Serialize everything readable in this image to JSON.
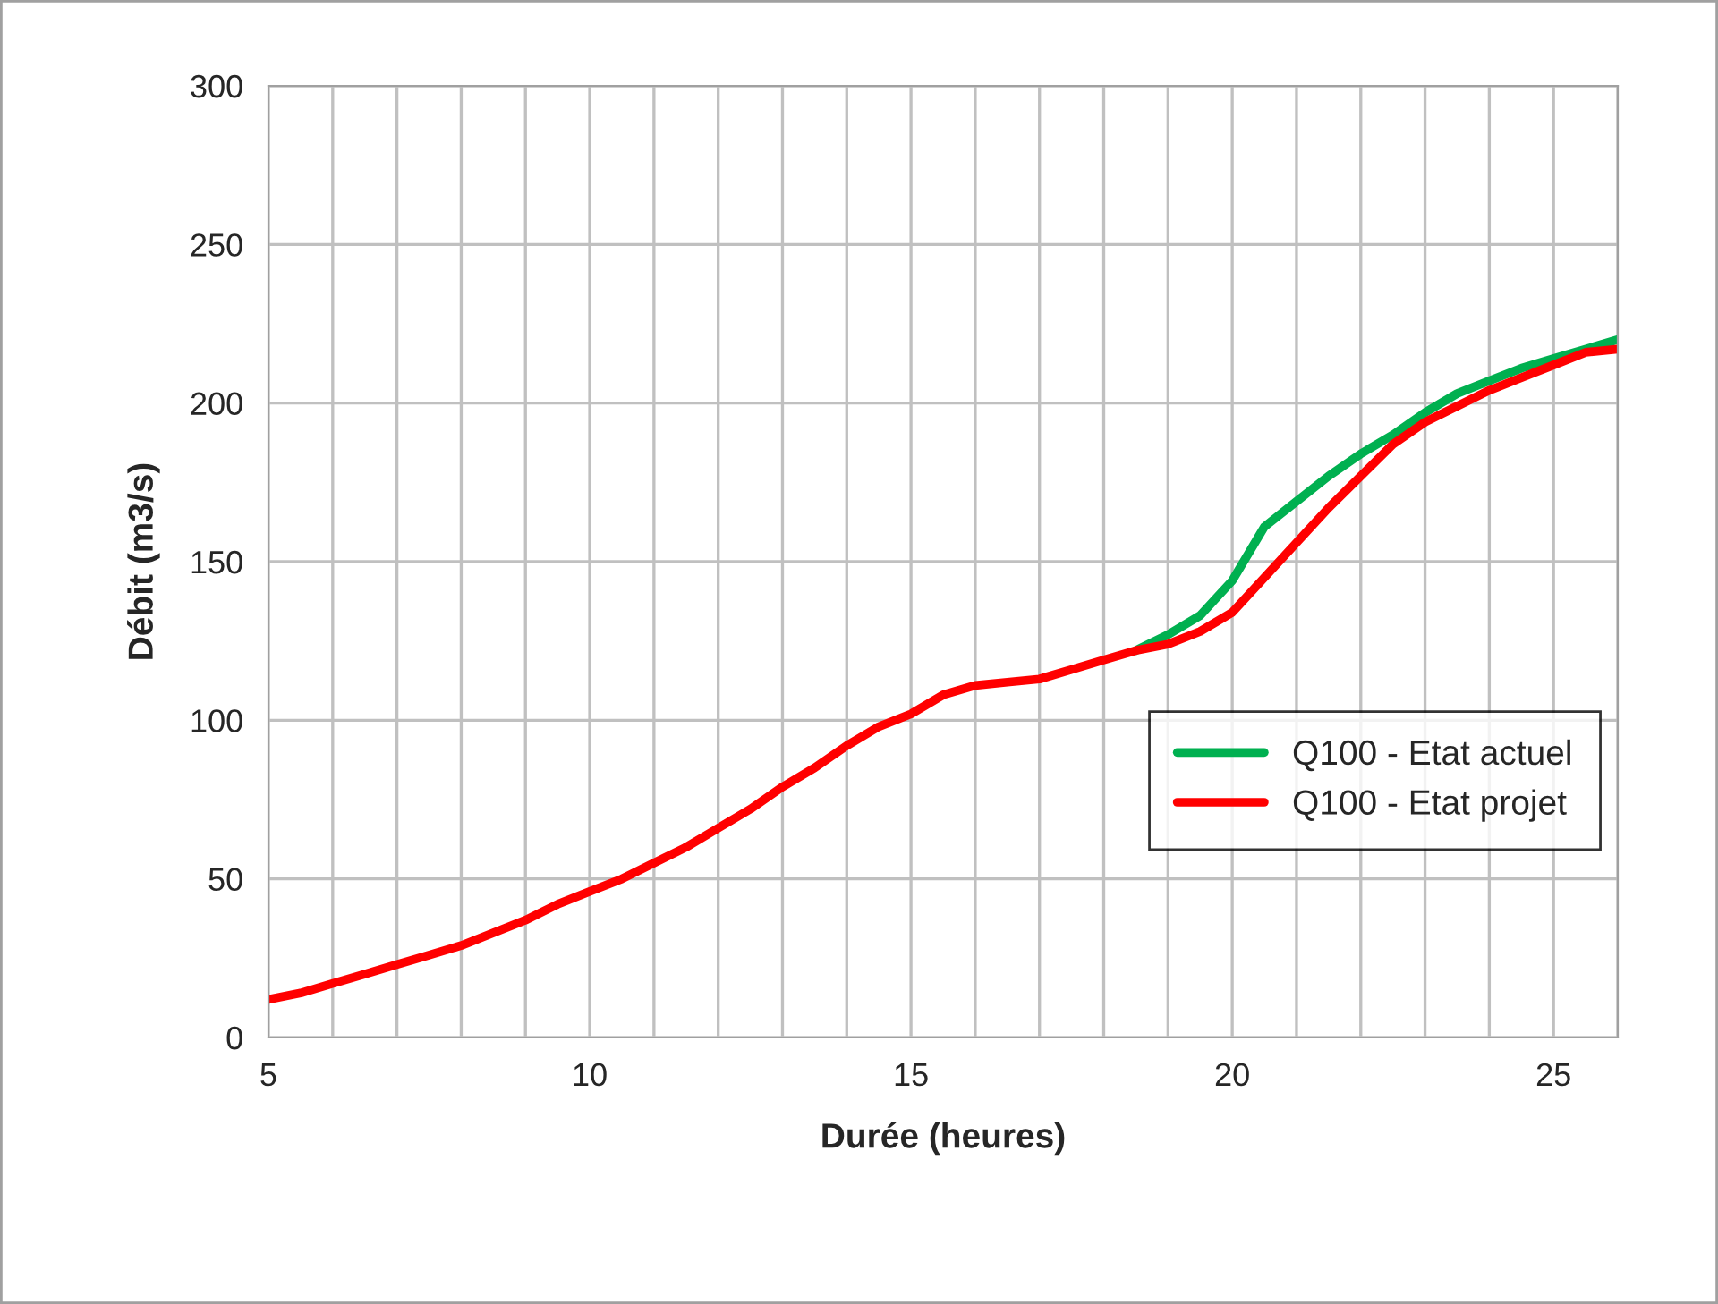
{
  "chart_data": {
    "type": "line",
    "xlabel": "Durée (heures)",
    "ylabel": "Débit (m3/s)",
    "x": [
      5,
      5.5,
      6,
      6.5,
      7,
      7.5,
      8,
      8.5,
      9,
      9.5,
      10,
      10.5,
      11,
      11.5,
      12,
      12.5,
      13,
      13.5,
      14,
      14.5,
      15,
      15.5,
      16,
      16.5,
      17,
      17.5,
      18,
      18.5,
      19,
      19.5,
      20,
      20.5,
      21,
      21.5,
      22,
      22.5,
      23,
      23.5,
      24,
      24.5,
      25,
      25.5,
      26
    ],
    "series": [
      {
        "name": "Q100 - Etat actuel",
        "color": "#00b050",
        "values": [
          null,
          null,
          null,
          null,
          null,
          null,
          null,
          null,
          null,
          null,
          null,
          null,
          null,
          null,
          null,
          null,
          null,
          null,
          null,
          null,
          null,
          null,
          null,
          null,
          null,
          null,
          null,
          122,
          127,
          133,
          144,
          161,
          169,
          177,
          184,
          190,
          197,
          203,
          207,
          211,
          214,
          217,
          220
        ]
      },
      {
        "name": "Q100 - Etat projet",
        "color": "#ff0000",
        "values": [
          12,
          14,
          17,
          20,
          23,
          26,
          29,
          33,
          37,
          42,
          46,
          50,
          55,
          60,
          66,
          72,
          79,
          85,
          92,
          98,
          102,
          108,
          111,
          112,
          113,
          116,
          119,
          122,
          124,
          128,
          134,
          145,
          156,
          167,
          177,
          187,
          194,
          199,
          204,
          208,
          212,
          216,
          217
        ]
      }
    ],
    "xlim": [
      5,
      26
    ],
    "ylim": [
      0,
      300
    ],
    "xticks": [
      5,
      {
        "value": 6,
        "label": null
      },
      {
        "value": 7,
        "label": null
      },
      {
        "value": 8,
        "label": null
      },
      {
        "value": 9,
        "label": null
      },
      10,
      {
        "value": 11,
        "label": null
      },
      {
        "value": 12,
        "label": null
      },
      {
        "value": 13,
        "label": null
      },
      {
        "value": 14,
        "label": null
      },
      15,
      {
        "value": 16,
        "label": null
      },
      {
        "value": 17,
        "label": null
      },
      {
        "value": 18,
        "label": null
      },
      {
        "value": 19,
        "label": null
      },
      20,
      {
        "value": 21,
        "label": null
      },
      {
        "value": 22,
        "label": null
      },
      {
        "value": 23,
        "label": null
      },
      {
        "value": 24,
        "label": null
      },
      25,
      {
        "value": 26,
        "label": null
      }
    ],
    "yticks": [
      0,
      50,
      100,
      150,
      200,
      250,
      300
    ],
    "grid": true,
    "legend": "right",
    "marker": "none",
    "line_style": "solid"
  }
}
